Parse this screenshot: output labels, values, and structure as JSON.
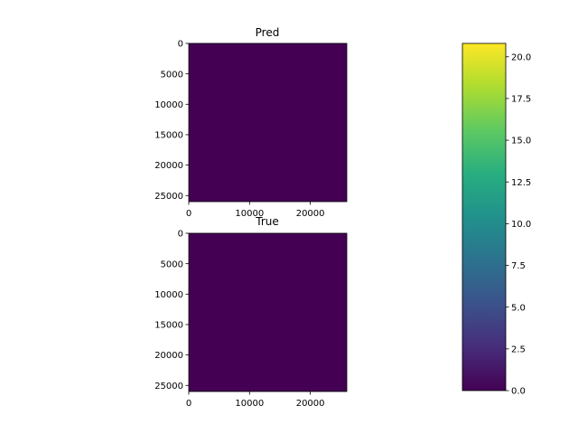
{
  "chart_data": [
    {
      "type": "heatmap",
      "title": "Pred",
      "xlabel": "",
      "ylabel": "",
      "xlim": [
        0,
        26000
      ],
      "ylim": [
        26000,
        0
      ],
      "xticks": [
        0,
        10000,
        20000
      ],
      "yticks": [
        0,
        5000,
        10000,
        15000,
        20000,
        25000
      ],
      "fill_value": 0.0,
      "color": "#440154"
    },
    {
      "type": "heatmap",
      "title": "True",
      "xlabel": "",
      "ylabel": "",
      "xlim": [
        0,
        26000
      ],
      "ylim": [
        26000,
        0
      ],
      "xticks": [
        0,
        10000,
        20000
      ],
      "yticks": [
        0,
        5000,
        10000,
        15000,
        20000,
        25000
      ],
      "fill_value": 0.0,
      "color": "#440154"
    }
  ],
  "colorbar": {
    "colormap": "viridis",
    "range": [
      0.0,
      20.8
    ],
    "ticks": [
      "0.0",
      "2.5",
      "5.0",
      "7.5",
      "10.0",
      "12.5",
      "15.0",
      "17.5",
      "20.0"
    ]
  }
}
